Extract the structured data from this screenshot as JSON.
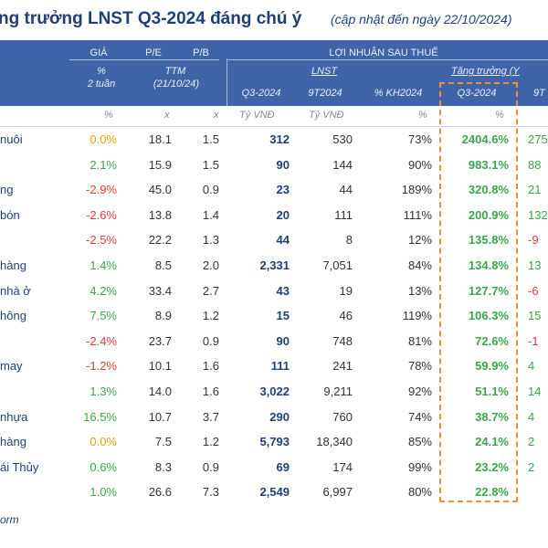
{
  "title": {
    "main": "ng trưởng LNST Q3-2024 đáng chú ý",
    "sub": "(cập nhật đến ngày 22/10/2024)"
  },
  "header": {
    "gia": "GIÁ",
    "pe": "P/E",
    "pb": "P/B",
    "gia_sub1": "%",
    "gia_sub2": "2 tuần",
    "ttm": "TTM",
    "ttm_date": "(21/10/24)",
    "lnst_group": "LỢI NHUẬN SAU THUẾ",
    "lnst": "LNST",
    "growth": "Tăng trưởng (Y",
    "q3": "Q3-2024",
    "n9": "9T2024",
    "kh": "% KH2024",
    "growth_q3": "Q3-2024",
    "growth_9t": "9T"
  },
  "units": {
    "gia": "%",
    "pe": "x",
    "pb": "x",
    "q3": "Tỷ VNĐ",
    "n9": "Tỷ VNĐ",
    "kh": "%",
    "gr": "%"
  },
  "rows": [
    {
      "name": "nuôi",
      "gia": "0.0%",
      "gia_class": "zero",
      "pe": "18.1",
      "pb": "1.5",
      "q3": "312",
      "n9": "530",
      "kh": "73%",
      "gr": "2404.6%",
      "ex": "275"
    },
    {
      "name": "",
      "gia": "2.1%",
      "gia_class": "pos",
      "pe": "15.9",
      "pb": "1.5",
      "q3": "90",
      "n9": "144",
      "kh": "90%",
      "gr": "983.1%",
      "ex": "88"
    },
    {
      "name": "ng",
      "gia": "-2.9%",
      "gia_class": "neg",
      "pe": "45.0",
      "pb": "0.9",
      "q3": "23",
      "n9": "44",
      "kh": "189%",
      "gr": "320.8%",
      "ex": "21"
    },
    {
      "name": "bón",
      "gia": "-2.6%",
      "gia_class": "neg",
      "pe": "13.8",
      "pb": "1.4",
      "q3": "20",
      "n9": "111",
      "kh": "111%",
      "gr": "200.9%",
      "ex": "132"
    },
    {
      "name": "",
      "gia": "-2.5%",
      "gia_class": "neg",
      "pe": "22.2",
      "pb": "1.3",
      "q3": "44",
      "n9": "8",
      "kh": "12%",
      "gr": "135.8%",
      "ex": "-9"
    },
    {
      "name": "hàng",
      "gia": "1.4%",
      "gia_class": "pos",
      "pe": "8.5",
      "pb": "2.0",
      "q3": "2,331",
      "n9": "7,051",
      "kh": "84%",
      "gr": "134.8%",
      "ex": "13"
    },
    {
      "name": "nhà ở",
      "gia": "4.2%",
      "gia_class": "pos",
      "pe": "33.4",
      "pb": "2.7",
      "q3": "43",
      "n9": "19",
      "kh": "13%",
      "gr": "127.7%",
      "ex": "-6"
    },
    {
      "name": "hông",
      "gia": "7.5%",
      "gia_class": "pos",
      "pe": "8.9",
      "pb": "1.2",
      "q3": "15",
      "n9": "46",
      "kh": "119%",
      "gr": "106.3%",
      "ex": "15"
    },
    {
      "name": "",
      "gia": "-2.4%",
      "gia_class": "neg",
      "pe": "23.7",
      "pb": "0.9",
      "q3": "90",
      "n9": "748",
      "kh": "81%",
      "gr": "72.6%",
      "ex": "-1"
    },
    {
      "name": "may",
      "gia": "-1.2%",
      "gia_class": "neg",
      "pe": "10.1",
      "pb": "1.6",
      "q3": "111",
      "n9": "241",
      "kh": "78%",
      "gr": "59.9%",
      "ex": "4"
    },
    {
      "name": "",
      "gia": "1.3%",
      "gia_class": "pos",
      "pe": "14.0",
      "pb": "1.6",
      "q3": "3,022",
      "n9": "9,211",
      "kh": "92%",
      "gr": "51.1%",
      "ex": "14"
    },
    {
      "name": "nhựa",
      "gia": "16.5%",
      "gia_class": "pos",
      "pe": "10.7",
      "pb": "3.7",
      "q3": "290",
      "n9": "760",
      "kh": "74%",
      "gr": "38.7%",
      "ex": "4"
    },
    {
      "name": "hàng",
      "gia": "0.0%",
      "gia_class": "zero",
      "pe": "7.5",
      "pb": "1.2",
      "q3": "5,793",
      "n9": "18,340",
      "kh": "85%",
      "gr": "24.1%",
      "ex": "2"
    },
    {
      "name": "ái Thủy",
      "gia": "0.6%",
      "gia_class": "pos",
      "pe": "8.3",
      "pb": "0.9",
      "q3": "69",
      "n9": "174",
      "kh": "99%",
      "gr": "23.2%",
      "ex": "2"
    },
    {
      "name": "",
      "gia": "1.0%",
      "gia_class": "pos",
      "pe": "26.6",
      "pb": "7.3",
      "q3": "2,549",
      "n9": "6,997",
      "kh": "80%",
      "gr": "22.8%",
      "ex": ""
    }
  ],
  "footer": "orm"
}
